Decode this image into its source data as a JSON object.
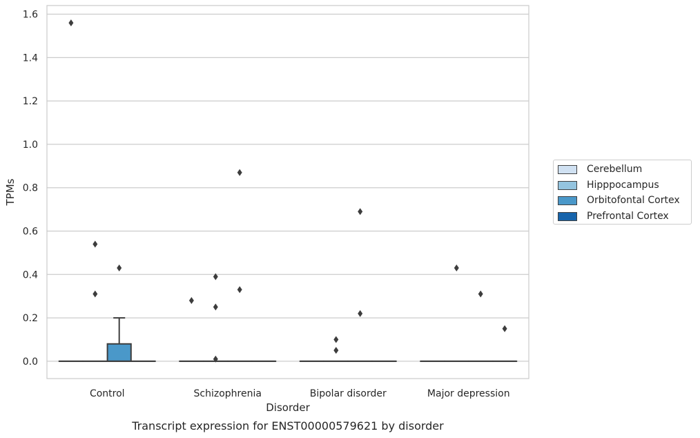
{
  "chart_data": {
    "type": "box",
    "title": "",
    "caption": "Transcript expression for ENST00000579621 by disorder",
    "xlabel": "Disorder",
    "ylabel": "TPMs",
    "ylim": [
      -0.08,
      1.64
    ],
    "yticks": [
      0.0,
      0.2,
      0.4,
      0.6,
      0.8,
      1.0,
      1.2,
      1.4,
      1.6
    ],
    "ytick_labels": [
      "0.0",
      "0.2",
      "0.4",
      "0.6",
      "0.8",
      "1.0",
      "1.2",
      "1.4",
      "1.6"
    ],
    "grid": "horizontal",
    "legend_position": "right",
    "categories": [
      "Control",
      "Schizophrenia",
      "Bipolar disorder",
      "Major depression"
    ],
    "series": [
      {
        "name": "Cerebellum",
        "color": "#d0e1f2",
        "boxes": [
          {
            "q1": 0,
            "median": 0,
            "q3": 0,
            "whisker_low": 0,
            "whisker_high": 0,
            "outliers": [
              1.56
            ]
          },
          {
            "q1": 0,
            "median": 0,
            "q3": 0,
            "whisker_low": 0,
            "whisker_high": 0,
            "outliers": [
              0.28
            ]
          },
          {
            "q1": 0,
            "median": 0,
            "q3": 0,
            "whisker_low": 0,
            "whisker_high": 0,
            "outliers": []
          },
          {
            "q1": 0,
            "median": 0,
            "q3": 0,
            "whisker_low": 0,
            "whisker_high": 0,
            "outliers": []
          }
        ]
      },
      {
        "name": "Hipppocampus",
        "color": "#94c4df",
        "boxes": [
          {
            "q1": 0,
            "median": 0,
            "q3": 0,
            "whisker_low": 0,
            "whisker_high": 0,
            "outliers": [
              0.54,
              0.31
            ]
          },
          {
            "q1": 0,
            "median": 0,
            "q3": 0,
            "whisker_low": 0,
            "whisker_high": 0,
            "outliers": [
              0.39,
              0.25,
              0.01
            ]
          },
          {
            "q1": 0,
            "median": 0,
            "q3": 0,
            "whisker_low": 0,
            "whisker_high": 0,
            "outliers": [
              0.1,
              0.05
            ]
          },
          {
            "q1": 0,
            "median": 0,
            "q3": 0,
            "whisker_low": 0,
            "whisker_high": 0,
            "outliers": [
              0.43
            ]
          }
        ]
      },
      {
        "name": "Orbitofontal Cortex",
        "color": "#4a98c9",
        "boxes": [
          {
            "q1": 0,
            "median": 0,
            "q3": 0.08,
            "whisker_low": 0,
            "whisker_high": 0.2,
            "outliers": [
              0.43
            ]
          },
          {
            "q1": 0,
            "median": 0,
            "q3": 0,
            "whisker_low": 0,
            "whisker_high": 0,
            "outliers": [
              0.87,
              0.33
            ]
          },
          {
            "q1": 0,
            "median": 0,
            "q3": 0,
            "whisker_low": 0,
            "whisker_high": 0,
            "outliers": [
              0.69,
              0.22
            ]
          },
          {
            "q1": 0,
            "median": 0,
            "q3": 0,
            "whisker_low": 0,
            "whisker_high": 0,
            "outliers": [
              0.31
            ]
          }
        ]
      },
      {
        "name": "Prefrontal Cortex",
        "color": "#1764ab",
        "boxes": [
          {
            "q1": 0,
            "median": 0,
            "q3": 0,
            "whisker_low": 0,
            "whisker_high": 0,
            "outliers": []
          },
          {
            "q1": 0,
            "median": 0,
            "q3": 0,
            "whisker_low": 0,
            "whisker_high": 0,
            "outliers": []
          },
          {
            "q1": 0,
            "median": 0,
            "q3": 0,
            "whisker_low": 0,
            "whisker_high": 0,
            "outliers": []
          },
          {
            "q1": 0,
            "median": 0,
            "q3": 0,
            "whisker_low": 0,
            "whisker_high": 0,
            "outliers": [
              0.15
            ]
          }
        ]
      }
    ]
  }
}
